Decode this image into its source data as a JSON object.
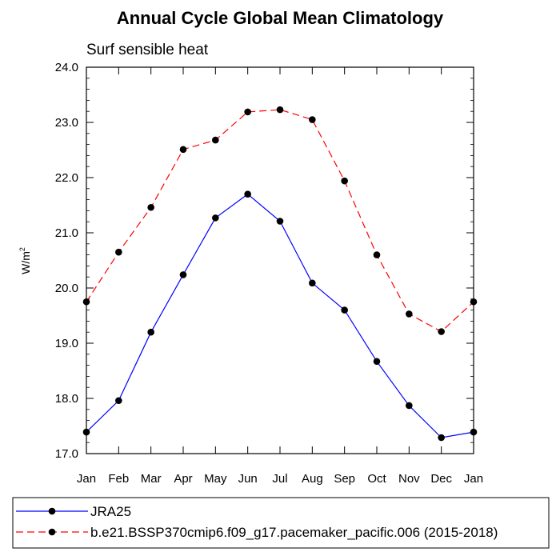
{
  "chart_data": {
    "type": "line",
    "title": "Annual Cycle Global Mean Climatology",
    "subtitle": "Surf sensible heat",
    "ylabel_base": "W/m",
    "ylabel_exp": "2",
    "xlabel": "",
    "categories": [
      "Jan",
      "Feb",
      "Mar",
      "Apr",
      "May",
      "Jun",
      "Jul",
      "Aug",
      "Sep",
      "Oct",
      "Nov",
      "Dec",
      "Jan"
    ],
    "ylim": [
      17.0,
      24.0
    ],
    "yticks": [
      "17.0",
      "18.0",
      "19.0",
      "20.0",
      "21.0",
      "22.0",
      "23.0",
      "24.0"
    ],
    "series": [
      {
        "name": "JRA25",
        "color": "#0000ff",
        "dash": "solid",
        "values": [
          17.39,
          17.96,
          19.2,
          20.24,
          21.27,
          21.7,
          21.21,
          20.09,
          19.6,
          18.67,
          17.87,
          17.29,
          17.39
        ]
      },
      {
        "name": "b.e21.BSSP370cmip6.f09_g17.pacemaker_pacific.006 (2015-2018)",
        "color": "#ff0000",
        "dash": "dashed",
        "values": [
          19.75,
          20.65,
          21.46,
          22.51,
          22.68,
          23.19,
          23.23,
          23.05,
          21.94,
          20.6,
          19.53,
          19.21,
          19.75
        ]
      }
    ],
    "legend_position": "bottom"
  }
}
